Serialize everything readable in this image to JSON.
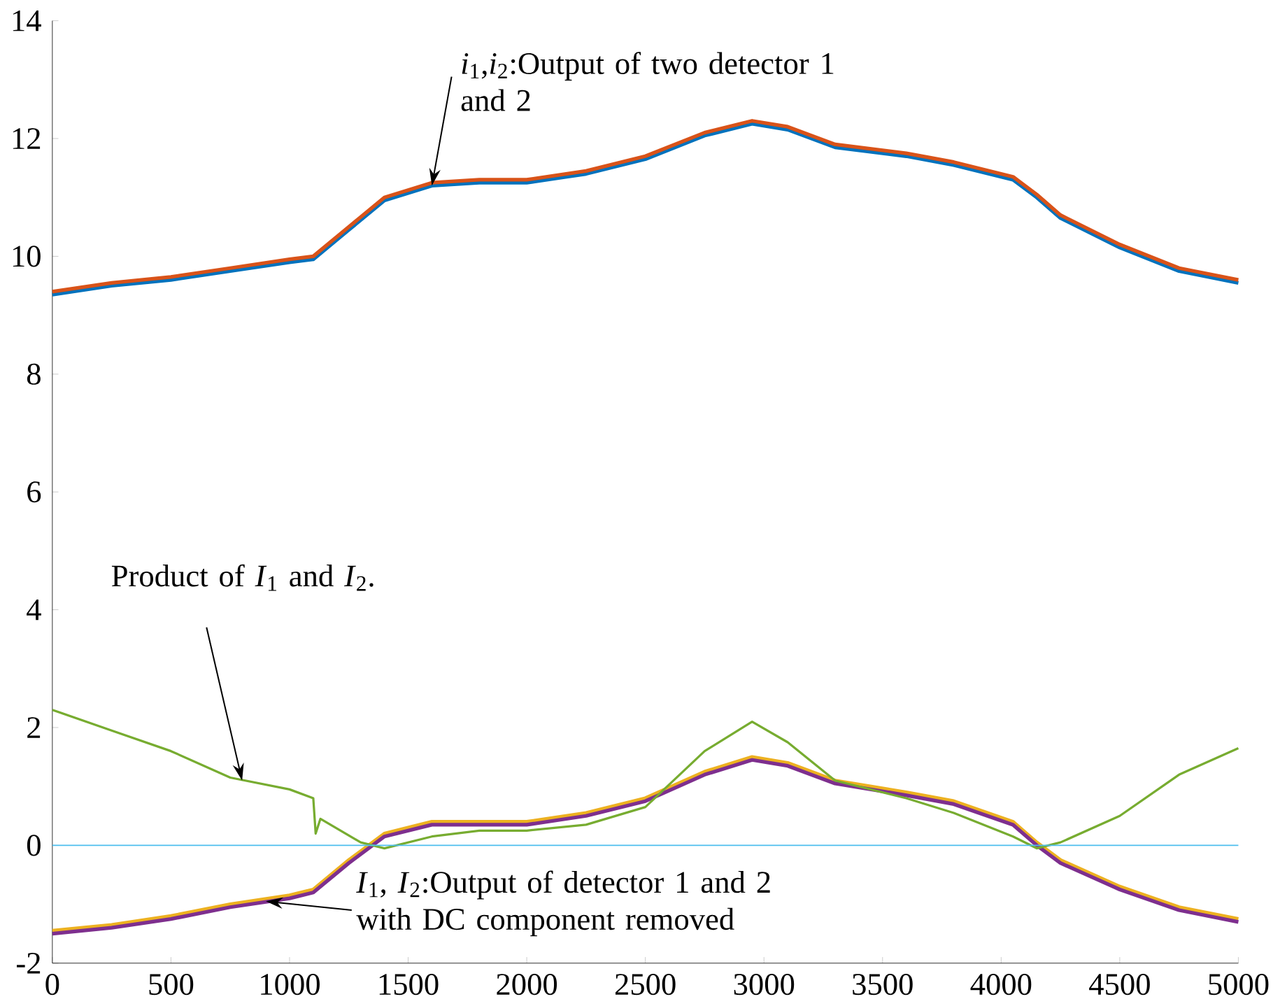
{
  "chart_data": {
    "type": "line",
    "x": [
      0,
      250,
      500,
      750,
      1000,
      1100,
      1250,
      1400,
      1600,
      1800,
      2000,
      2250,
      2500,
      2750,
      2950,
      3100,
      3300,
      3600,
      3800,
      4050,
      4150,
      4250,
      4500,
      4750,
      5000
    ],
    "series": [
      {
        "color": "#0072bd",
        "values": [
          9.35,
          9.5,
          9.6,
          9.75,
          9.9,
          9.95,
          10.45,
          10.95,
          11.2,
          11.25,
          11.25,
          11.4,
          11.65,
          12.05,
          12.25,
          12.15,
          11.85,
          11.7,
          11.55,
          11.3,
          11.0,
          10.65,
          10.15,
          9.75,
          9.55
        ]
      },
      {
        "color": "#d95319",
        "values": [
          9.4,
          9.55,
          9.65,
          9.8,
          9.95,
          10.0,
          10.5,
          11.0,
          11.25,
          11.3,
          11.3,
          11.45,
          11.7,
          12.1,
          12.3,
          12.2,
          11.9,
          11.75,
          11.6,
          11.35,
          11.05,
          10.7,
          10.2,
          9.8,
          9.6
        ]
      },
      {
        "color": "#edb120",
        "values": [
          -1.45,
          -1.35,
          -1.2,
          -1.0,
          -0.85,
          -0.75,
          -0.25,
          0.2,
          0.4,
          0.4,
          0.4,
          0.55,
          0.8,
          1.25,
          1.5,
          1.4,
          1.1,
          0.9,
          0.75,
          0.4,
          0.05,
          -0.25,
          -0.7,
          -1.05,
          -1.25
        ]
      },
      {
        "color": "#7e2f8e",
        "values": [
          -1.5,
          -1.4,
          -1.25,
          -1.05,
          -0.9,
          -0.8,
          -0.3,
          0.15,
          0.35,
          0.35,
          0.35,
          0.5,
          0.75,
          1.2,
          1.45,
          1.35,
          1.05,
          0.85,
          0.7,
          0.35,
          0.0,
          -0.3,
          -0.75,
          -1.1,
          -1.3
        ]
      },
      {
        "color": "#77ac30",
        "x": [
          0,
          250,
          500,
          750,
          1000,
          1100,
          1110,
          1130,
          1300,
          1400,
          1600,
          1800,
          2000,
          2250,
          2500,
          2750,
          2950,
          3100,
          3300,
          3600,
          3800,
          4050,
          4150,
          4250,
          4500,
          4750,
          5000
        ],
        "values": [
          2.3,
          1.95,
          1.6,
          1.15,
          0.95,
          0.8,
          0.2,
          0.45,
          0.05,
          -0.05,
          0.15,
          0.25,
          0.25,
          0.35,
          0.65,
          1.6,
          2.1,
          1.75,
          1.1,
          0.8,
          0.55,
          0.15,
          -0.05,
          0.05,
          0.5,
          1.2,
          1.65
        ]
      },
      {
        "color": "#4dbeee",
        "x": [
          0,
          5000
        ],
        "values": [
          0,
          0
        ]
      }
    ],
    "annotations": [
      {
        "text": "*i*$_{1}$,*i*$_{2}$:Output of two detector 1 and 2",
        "x": 1600,
        "y": 11.2
      },
      {
        "text": "Product of *I*$_{1}$ and *I*$_{2}$.",
        "x": 800,
        "y": 1.1
      },
      {
        "text": "*I*$_{1}$, *I*$_{2}$:Output of detector 1 and 2 with DC component removed",
        "x": 900,
        "y": -0.95
      }
    ],
    "xlim": [
      0,
      5000
    ],
    "ylim": [
      -2,
      14
    ],
    "xticks": [
      0,
      500,
      1000,
      1500,
      2000,
      2500,
      3000,
      3500,
      4000,
      4500,
      5000
    ],
    "yticks": [
      -2,
      0,
      2,
      4,
      6,
      8,
      10,
      12,
      14
    ],
    "grid": false,
    "line_style": "solid",
    "marker": "none"
  }
}
